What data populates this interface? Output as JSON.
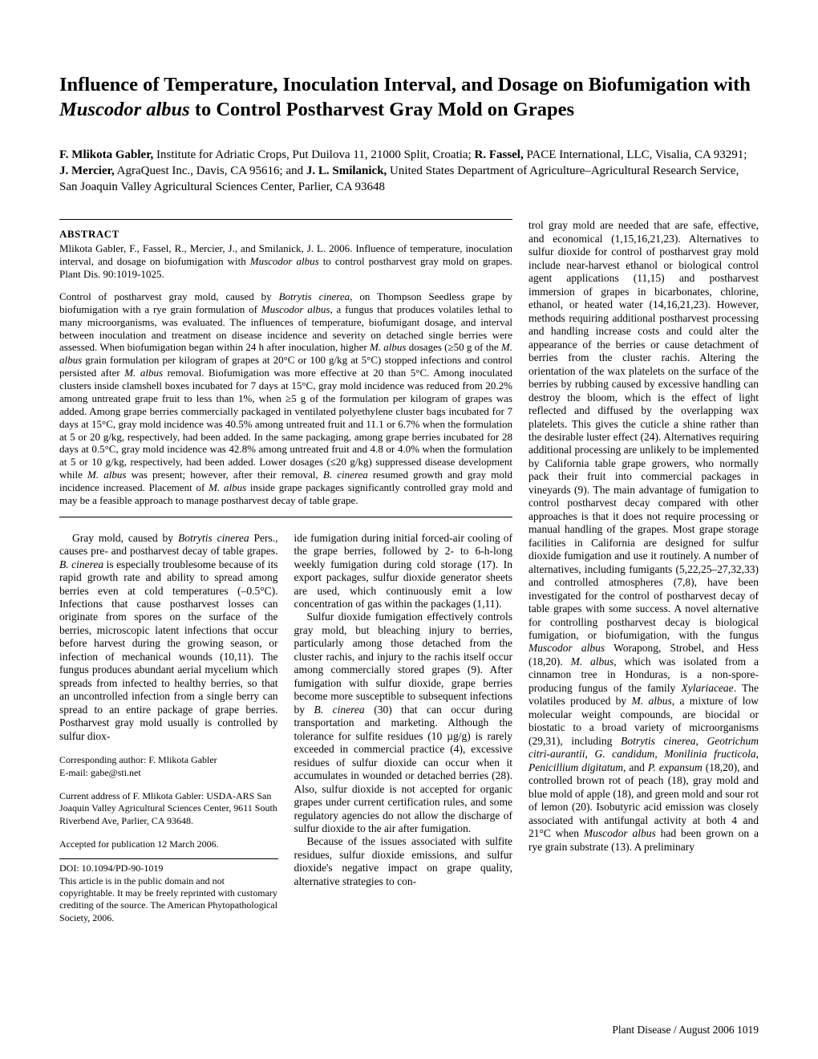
{
  "title_plain_pre": "Influence of Temperature, Inoculation Interval, and Dosage on Biofumigation with ",
  "title_italic": "Muscodor albus",
  "title_plain_post": " to Control Postharvest Gray Mold on Grapes",
  "authors_html": "<b>F. Mlikota Gabler,</b> Institute for Adriatic Crops, Put Duilova 11, 21000 Split, Croatia; <b>R. Fassel,</b> PACE International, LLC, Visalia, CA 93291; <b>J. Mercier,</b> AgraQuest Inc., Davis, CA 95616; and <b>J. L. Smilanick,</b> United States Department of Agriculture–Agricultural Research Service, San Joaquin Valley Agricultural Sciences Center, Parlier, CA 93648",
  "abstract_label": "ABSTRACT",
  "citation_html": "Mlikota Gabler, F., Fassel, R., Mercier, J., and Smilanick, J. L. 2006. Influence of temperature, inoculation interval, and dosage on biofumigation with <i>Muscodor albus</i> to control postharvest gray mold on grapes. Plant Dis. 90:1019-1025.",
  "abstract_html": "Control of postharvest gray mold, caused by <i>Botrytis cinerea,</i> on Thompson Seedless grape by biofumigation with a rye grain formulation of <i>Muscodor albus</i>, a fungus that produces volatiles lethal to many microorganisms, was evaluated. The influences of temperature, biofumigant dosage, and interval between inoculation and treatment on disease incidence and severity on detached single berries were assessed. When biofumigation began within 24 h after inoculation, higher <i>M. albus</i> dosages (≥50 g of the <i>M. albus</i> grain formulation per kilogram of grapes at 20°C or 100 g/kg at 5°C) stopped infections and control persisted after <i>M. albus</i> removal. Biofumigation was more effective at 20 than 5°C. Among inoculated clusters inside clamshell boxes incubated for 7 days at 15°C, gray mold incidence was reduced from 20.2% among untreated grape fruit to less than 1%, when ≥5 g of the formulation per kilogram of grapes was added. Among grape berries commercially packaged in ventilated polyethylene cluster bags incubated for 7 days at 15°C, gray mold incidence was 40.5% among untreated fruit and 11.1 or 6.7% when the formulation at 5 or 20 g/kg, respectively, had been added. In the same packaging, among grape berries incubated for 28 days at 0.5°C, gray mold incidence was 42.8% among untreated fruit and 4.8 or 4.0% when the formulation at 5 or 10 g/kg, respectively, had been added. Lower dosages (≤20 g/kg) suppressed disease development while <i>M. albus</i> was present; however, after their removal, <i>B. cinerea</i> resumed growth and gray mold incidence increased. Placement of <i>M. albus</i> inside grape packages significantly controlled gray mold and may be a feasible approach to manage postharvest decay of table grape.",
  "col1_p1_html": "Gray mold, caused by <i>Botrytis cinerea</i> Pers., causes pre- and postharvest decay of table grapes. <i>B. cinerea</i> is especially troublesome because of its rapid growth rate and ability to spread among berries even at cold temperatures (–0.5°C). Infections that cause postharvest losses can originate from spores on the surface of the berries, microscopic latent infections that occur before harvest during the growing season, or infection of mechanical wounds (10,11). The fungus produces abundant aerial mycelium which spreads from infected to healthy berries, so that an uncontrolled infection from a single berry can spread to an entire package of grape berries. Postharvest gray mold usually is controlled by sulfur diox-",
  "corresponding_author": "Corresponding author: F. Mlikota Gabler",
  "corresponding_email": "E-mail: gabe@sti.net",
  "current_address": "Current address of F. Mlikota Gabler: USDA-ARS San Joaquin Valley Agricultural Sciences Center, 9611 South Riverbend Ave, Parlier, CA 93648.",
  "accepted": "Accepted for publication 12 March 2006.",
  "doi": "DOI: 10.1094/PD-90-1019",
  "copyright": "This article is in the public domain and not copyrightable. It may be freely reprinted with customary crediting of the source. The American Phytopathological Society, 2006.",
  "col2_p1_html": "ide fumigation during initial forced-air cooling of the grape berries, followed by 2- to 6-h-long weekly fumigation during cold storage (17). In export packages, sulfur dioxide generator sheets are used, which continuously emit a low concentration of gas within the packages (1,11).",
  "col2_p2_html": "Sulfur dioxide fumigation effectively controls gray mold, but bleaching injury to berries, particularly among those detached from the cluster rachis, and injury to the rachis itself occur among commercially stored grapes (9). After fumigation with sulfur dioxide, grape berries become more susceptible to subsequent infections by <i>B. cinerea</i> (30) that can occur during transportation and marketing. Although the tolerance for sulfite residues (10 µg/g) is rarely exceeded in commercial practice (4), excessive residues of sulfur dioxide can occur when it accumulates in wounded or detached berries (28). Also, sulfur dioxide is not accepted for organic grapes under current certification rules, and some regulatory agencies do not allow the discharge of sulfur dioxide to the air after fumigation.",
  "col2_p3_html": "Because of the issues associated with sulfite residues, sulfur dioxide emissions, and sulfur dioxide's negative impact on grape quality, alternative strategies to con-",
  "col3_html": "trol gray mold are needed that are safe, effective, and economical (1,15,16,21,23). Alternatives to sulfur dioxide for control of postharvest gray mold include near-harvest ethanol or biological control agent applications (11,15) and postharvest immersion of grapes in bicarbonates, chlorine, ethanol, or heated water (14,16,21,23). However, methods requiring additional postharvest processing and handling increase costs and could alter the appearance of the berries or cause detachment of berries from the cluster rachis. Altering the orientation of the wax platelets on the surface of the berries by rubbing caused by excessive handling can destroy the bloom, which is the effect of light reflected and diffused by the overlapping wax platelets. This gives the cuticle a shine rather than the desirable luster effect (24). Alternatives requiring additional processing are unlikely to be implemented by California table grape growers, who normally pack their fruit into commercial packages in vineyards (9). The main advantage of fumigation to control postharvest decay compared with other approaches is that it does not require processing or manual handling of the grapes. Most grape storage facilities in California are designed for sulfur dioxide fumigation and use it routinely. A number of alternatives, including fumigants (5,22,25–27,32,33) and controlled atmospheres (7,8), have been investigated for the control of postharvest decay of table grapes with some success. A novel alternative for controlling postharvest decay is biological fumigation, or biofumigation, with the fungus <i>Muscodor albus</i> Worapong, Strobel, and Hess (18,20). <i>M. albus,</i> which was isolated from a cinnamon tree in Honduras, is a non-spore-producing fungus of the family <i>Xylariaceae</i>. The volatiles produced by <i>M. albus,</i> a mixture of low molecular weight compounds, are biocidal or biostatic to a broad variety of microorganisms (29,31), including <i>Botrytis cinerea, Geotrichum citri-aurantii, G. candidum, Monilinia fructicola</i>, <i>Penicillium digitatum,</i> and <i>P. expansum</i> (18,20), and controlled brown rot of peach (18), gray mold and blue mold of apple (18), and green mold and sour rot of lemon (20). Isobutyric acid emission was closely associated with antifungal activity at both 4 and 21°C when <i>Muscodor albus</i> had been grown on a rye grain substrate (13). A preliminary",
  "footer": "Plant Disease / August 2006    1019"
}
